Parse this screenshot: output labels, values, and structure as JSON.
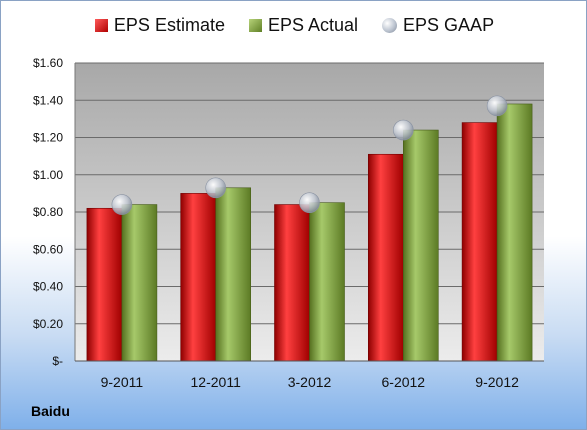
{
  "legend": {
    "estimate_label": "EPS Estimate",
    "actual_label": "EPS Actual",
    "gaap_label": "EPS GAAP"
  },
  "company": "Baidu",
  "colors": {
    "estimate": "#cc1a1a",
    "actual": "#7fa23a",
    "gaap": "#b8bfcc",
    "plot_bg_top": "#a8a8a8",
    "plot_bg_bottom": "#ececec"
  },
  "chart_data": {
    "type": "bar",
    "categories": [
      "9-2011",
      "12-2011",
      "3-2012",
      "6-2012",
      "9-2012"
    ],
    "series": [
      {
        "name": "EPS Estimate",
        "values": [
          0.82,
          0.9,
          0.84,
          1.11,
          1.28
        ]
      },
      {
        "name": "EPS Actual",
        "values": [
          0.84,
          0.93,
          0.85,
          1.24,
          1.38
        ]
      },
      {
        "name": "EPS GAAP",
        "type": "scatter",
        "values": [
          0.84,
          0.93,
          0.85,
          1.24,
          1.37
        ]
      }
    ],
    "ylim": [
      0,
      1.6
    ],
    "yticks": [
      0,
      0.2,
      0.4,
      0.6,
      0.8,
      1.0,
      1.2,
      1.4,
      1.6
    ],
    "ytick_labels": [
      "$-",
      "$0.20",
      "$0.40",
      "$0.60",
      "$0.80",
      "$1.00",
      "$1.20",
      "$1.40",
      "$1.60"
    ],
    "grid": true,
    "legend_position": "top"
  }
}
